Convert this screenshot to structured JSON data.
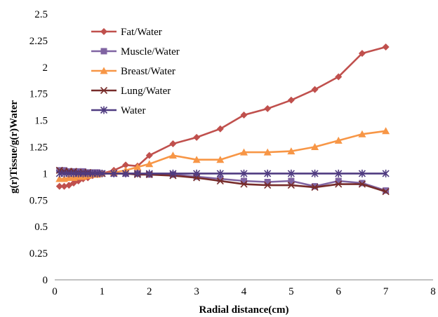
{
  "chart_data": {
    "type": "line",
    "xlabel": "Radial distance(cm)",
    "ylabel": "g(r)Tissue/g(r)Water",
    "xlim": [
      0,
      8
    ],
    "ylim": [
      0,
      2.5
    ],
    "xticks": [
      "0",
      "1",
      "2",
      "3",
      "4",
      "5",
      "6",
      "7",
      "8"
    ],
    "yticks": [
      "0",
      "0.25",
      "0.5",
      "0.75",
      "1",
      "1.25",
      "1.5",
      "1.75",
      "2",
      "2.25",
      "2.5"
    ],
    "grid": false,
    "legend_position": "top-left",
    "series": [
      {
        "name": "Fat/Water",
        "color": "#c0504d",
        "marker": "diamond",
        "x": [
          0.1,
          0.2,
          0.3,
          0.4,
          0.5,
          0.6,
          0.7,
          0.8,
          0.9,
          1.0,
          1.25,
          1.5,
          1.75,
          2.0,
          2.5,
          3.0,
          3.5,
          4.0,
          4.5,
          5.0,
          5.5,
          6.0,
          6.5,
          7.0
        ],
        "y": [
          0.88,
          0.88,
          0.89,
          0.91,
          0.93,
          0.95,
          0.96,
          0.98,
          0.99,
          1.0,
          1.03,
          1.08,
          1.07,
          1.17,
          1.28,
          1.34,
          1.42,
          1.55,
          1.61,
          1.69,
          1.79,
          1.91,
          2.13,
          2.19
        ]
      },
      {
        "name": "Muscle/Water",
        "color": "#8064a2",
        "marker": "square",
        "x": [
          0.1,
          0.2,
          0.3,
          0.4,
          0.5,
          0.6,
          0.7,
          0.8,
          0.9,
          1.0,
          1.25,
          1.5,
          1.75,
          2.0,
          2.5,
          3.0,
          3.5,
          4.0,
          4.5,
          5.0,
          5.5,
          6.0,
          6.5,
          7.0
        ],
        "y": [
          1.03,
          1.03,
          1.02,
          1.02,
          1.02,
          1.02,
          1.01,
          1.01,
          1.01,
          1.0,
          1.0,
          1.0,
          1.0,
          0.99,
          0.99,
          0.97,
          0.95,
          0.93,
          0.92,
          0.93,
          0.88,
          0.93,
          0.91,
          0.84
        ]
      },
      {
        "name": "Breast/Water",
        "color": "#f79646",
        "marker": "triangle",
        "x": [
          0.1,
          0.2,
          0.3,
          0.4,
          0.5,
          0.6,
          0.7,
          0.8,
          0.9,
          1.0,
          1.25,
          1.5,
          1.75,
          2.0,
          2.5,
          3.0,
          3.5,
          4.0,
          4.5,
          5.0,
          5.5,
          6.0,
          6.5,
          7.0
        ],
        "y": [
          0.95,
          0.95,
          0.96,
          0.96,
          0.97,
          0.97,
          0.98,
          0.99,
          0.99,
          1.0,
          1.01,
          1.03,
          1.06,
          1.09,
          1.17,
          1.13,
          1.13,
          1.2,
          1.2,
          1.21,
          1.25,
          1.31,
          1.37,
          1.4
        ]
      },
      {
        "name": "Lung/Water",
        "color": "#772c2a",
        "marker": "x",
        "x": [
          0.1,
          0.2,
          0.3,
          0.4,
          0.5,
          0.6,
          0.7,
          0.8,
          0.9,
          1.0,
          1.25,
          1.5,
          1.75,
          2.0,
          2.5,
          3.0,
          3.5,
          4.0,
          4.5,
          5.0,
          5.5,
          6.0,
          6.5,
          7.0
        ],
        "y": [
          1.03,
          1.02,
          1.02,
          1.02,
          1.01,
          1.01,
          1.01,
          1.0,
          1.0,
          1.0,
          1.0,
          1.0,
          0.99,
          0.99,
          0.98,
          0.96,
          0.93,
          0.9,
          0.89,
          0.89,
          0.87,
          0.9,
          0.9,
          0.83
        ]
      },
      {
        "name": "Water",
        "color": "#4f3b80",
        "marker": "star",
        "x": [
          0.1,
          0.2,
          0.3,
          0.4,
          0.5,
          0.6,
          0.7,
          0.8,
          0.9,
          1.0,
          1.25,
          1.5,
          1.75,
          2.0,
          2.5,
          3.0,
          3.5,
          4.0,
          4.5,
          5.0,
          5.5,
          6.0,
          6.5,
          7.0
        ],
        "y": [
          1.0,
          1.0,
          1.0,
          1.0,
          1.0,
          1.0,
          1.0,
          1.0,
          1.0,
          1.0,
          1.0,
          1.0,
          1.0,
          1.0,
          1.0,
          1.0,
          1.0,
          1.0,
          1.0,
          1.0,
          1.0,
          1.0,
          1.0,
          1.0
        ]
      }
    ]
  }
}
